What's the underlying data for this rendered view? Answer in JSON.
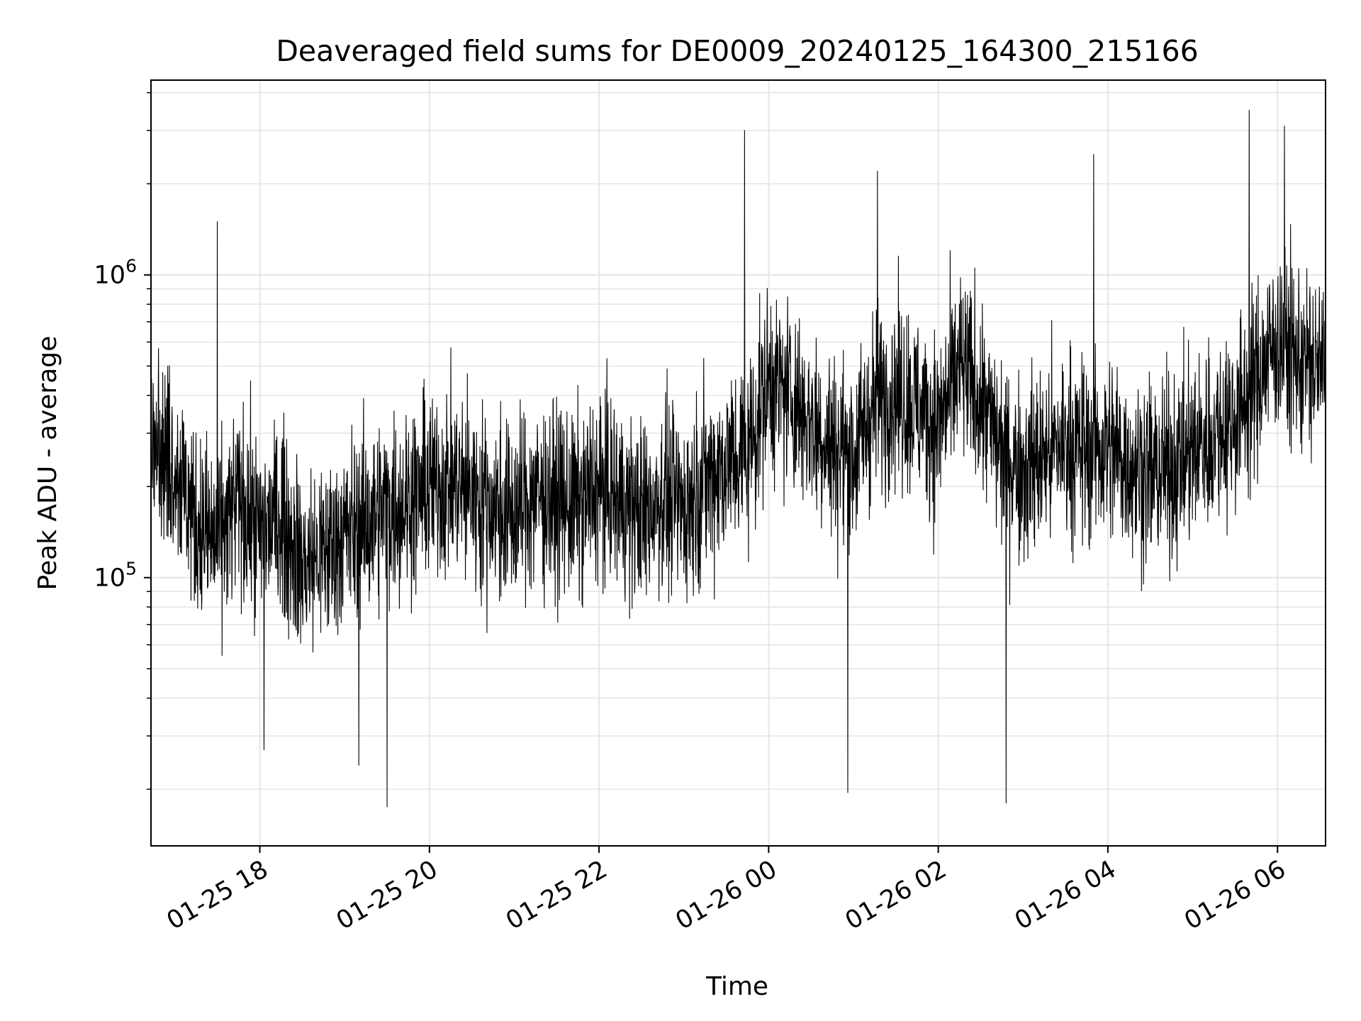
{
  "chart_data": {
    "type": "line",
    "title": "Deaveraged field sums for DE0009_20240125_164300_215166",
    "xlabel": "Time",
    "ylabel": "Peak ADU - average",
    "yscale": "log",
    "grid": true,
    "line_color": "#000000",
    "grid_color": "#e6e6e6",
    "x_range": [
      "2024-01-25 16:43",
      "2024-01-26 06:34"
    ],
    "ylim": [
      13000,
      4400000
    ],
    "x_ticks": [
      {
        "value": "2024-01-25 18:00",
        "label": "01-25 18"
      },
      {
        "value": "2024-01-25 20:00",
        "label": "01-25 20"
      },
      {
        "value": "2024-01-25 22:00",
        "label": "01-25 22"
      },
      {
        "value": "2024-01-26 00:00",
        "label": "01-26 00"
      },
      {
        "value": "2024-01-26 02:00",
        "label": "01-26 02"
      },
      {
        "value": "2024-01-26 04:00",
        "label": "01-26 04"
      },
      {
        "value": "2024-01-26 06:00",
        "label": "01-26 06"
      }
    ],
    "y_ticks": [
      {
        "value": 100000,
        "base": "10",
        "exp": "5"
      },
      {
        "value": 1000000,
        "base": "10",
        "exp": "6"
      }
    ],
    "series": [
      {
        "x": [
          "2024-01-25 16:43",
          "2024-01-25 17:00",
          "2024-01-25 17:15",
          "2024-01-25 17:30",
          "2024-01-25 17:45",
          "2024-01-25 18:00",
          "2024-01-25 18:15",
          "2024-01-25 18:30",
          "2024-01-25 18:45",
          "2024-01-25 19:00",
          "2024-01-25 19:15",
          "2024-01-25 19:30",
          "2024-01-25 19:45",
          "2024-01-25 20:00",
          "2024-01-25 20:15",
          "2024-01-25 20:30",
          "2024-01-25 20:45",
          "2024-01-25 21:00",
          "2024-01-25 21:15",
          "2024-01-25 21:30",
          "2024-01-25 21:45",
          "2024-01-25 22:00",
          "2024-01-25 22:15",
          "2024-01-25 22:30",
          "2024-01-25 22:45",
          "2024-01-25 23:00",
          "2024-01-25 23:15",
          "2024-01-25 23:30",
          "2024-01-25 23:45",
          "2024-01-26 00:00",
          "2024-01-26 00:15",
          "2024-01-26 00:30",
          "2024-01-26 00:45",
          "2024-01-26 01:00",
          "2024-01-26 01:15",
          "2024-01-26 01:30",
          "2024-01-26 01:45",
          "2024-01-26 02:00",
          "2024-01-26 02:15",
          "2024-01-26 02:30",
          "2024-01-26 02:45",
          "2024-01-26 03:00",
          "2024-01-26 03:15",
          "2024-01-26 03:30",
          "2024-01-26 03:45",
          "2024-01-26 04:00",
          "2024-01-26 04:15",
          "2024-01-26 04:30",
          "2024-01-26 04:45",
          "2024-01-26 05:00",
          "2024-01-26 05:15",
          "2024-01-26 05:30",
          "2024-01-26 05:45",
          "2024-01-26 06:00",
          "2024-01-26 06:15",
          "2024-01-26 06:34"
        ],
        "y": [
          280000,
          240000,
          150000,
          130000,
          180000,
          140000,
          160000,
          110000,
          120000,
          140000,
          150000,
          170000,
          180000,
          200000,
          210000,
          190000,
          170000,
          160000,
          190000,
          180000,
          170000,
          200000,
          180000,
          160000,
          190000,
          170000,
          210000,
          240000,
          260000,
          450000,
          400000,
          330000,
          270000,
          250000,
          380000,
          420000,
          360000,
          320000,
          500000,
          390000,
          260000,
          230000,
          250000,
          280000,
          260000,
          270000,
          240000,
          220000,
          230000,
          260000,
          300000,
          340000,
          450000,
          620000,
          520000,
          480000
        ],
        "min_dips": [
          {
            "x": "2024-01-25 18:03",
            "y": 27000
          },
          {
            "x": "2024-01-25 19:10",
            "y": 24000
          },
          {
            "x": "2024-01-25 19:30",
            "y": 17500
          },
          {
            "x": "2024-01-26 00:56",
            "y": 19500
          },
          {
            "x": "2024-01-26 02:48",
            "y": 18000
          }
        ],
        "max_spikes": [
          {
            "x": "2024-01-25 17:30",
            "y": 1500000
          },
          {
            "x": "2024-01-25 23:43",
            "y": 3000000
          },
          {
            "x": "2024-01-26 01:17",
            "y": 2200000
          },
          {
            "x": "2024-01-26 03:50",
            "y": 2500000
          },
          {
            "x": "2024-01-26 05:40",
            "y": 3500000
          },
          {
            "x": "2024-01-26 06:05",
            "y": 3100000
          }
        ]
      }
    ]
  }
}
